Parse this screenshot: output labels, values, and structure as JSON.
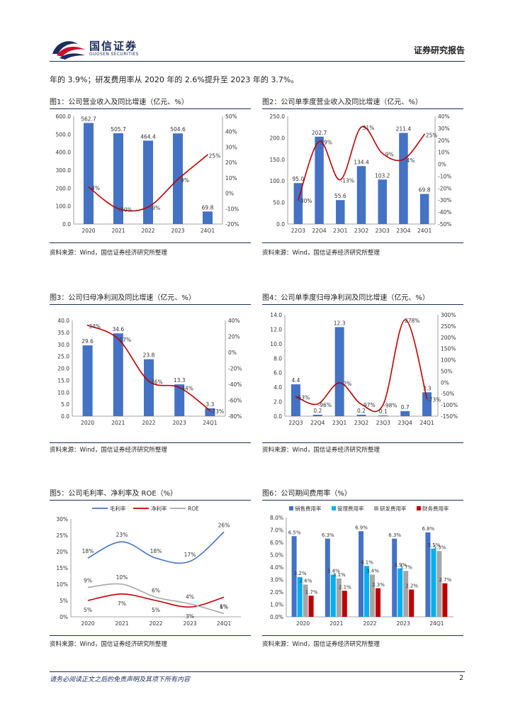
{
  "header": {
    "logo_cn": "国信证券",
    "logo_en": "GUOSEN SECURITIES",
    "report_type": "证券研究报告"
  },
  "intro_text": "年的 3.9%；研发费用率从 2020 年的 2.6%提升至 2023 年的 3.7%。",
  "source_text": "资料来源：Wind，国信证券经济研究所整理",
  "footer": {
    "disclaimer": "请务必阅读正文之后的免责声明及其项下所有内容",
    "page_number": "2"
  },
  "colors": {
    "bar": "#4472c4",
    "line": "#c00000",
    "rule": "#1b2d5c"
  },
  "chart_data": [
    {
      "type": "bar",
      "title": "图1：公司营业收入及同比增速（亿元、%）",
      "categories": [
        "2020",
        "2021",
        "2022",
        "2023",
        "24Q1"
      ],
      "series": [
        {
          "values": [
            562.7,
            505.7,
            464.4,
            504.6,
            69.8
          ],
          "labels": [
            "562.7",
            "505.7",
            "464.4",
            "504.6",
            "69.8"
          ]
        },
        {
          "type": "line",
          "axis": "right",
          "values": [
            4,
            -10,
            -9,
            9,
            25
          ],
          "labels": [
            "4%",
            "-10%",
            "-9%",
            "9%",
            "25%"
          ]
        }
      ],
      "y_left": {
        "min": 0,
        "max": 600,
        "ticks": [
          "0.0",
          "100.0",
          "200.0",
          "300.0",
          "400.0",
          "500.0",
          "600.0"
        ]
      },
      "y_right": {
        "min": -20,
        "max": 50,
        "ticks": [
          "-20%",
          "-10%",
          "0%",
          "10%",
          "20%",
          "30%",
          "40%",
          "50%"
        ]
      }
    },
    {
      "type": "bar",
      "title": "图2：公司单季度营业收入及同比增速（亿元、%）",
      "categories": [
        "22Q3",
        "22Q4",
        "23Q1",
        "23Q2",
        "23Q3",
        "23Q4",
        "24Q1"
      ],
      "series": [
        {
          "values": [
            95.0,
            202.7,
            55.6,
            134.4,
            103.2,
            211.4,
            69.8
          ],
          "labels": [
            "95.0",
            "202.7",
            "55.6",
            "134.4",
            "103.2",
            "211.4",
            "69.8"
          ]
        },
        {
          "type": "line",
          "axis": "right",
          "values": [
            -30,
            19,
            -13,
            31,
            9,
            4,
            25
          ],
          "labels": [
            "-30%",
            "19%",
            "-13%",
            "31%",
            "9%",
            "4%",
            "25%"
          ]
        }
      ],
      "y_left": {
        "min": 0,
        "max": 250,
        "ticks": [
          "0.0",
          "50.0",
          "100.0",
          "150.0",
          "200.0",
          "250.0"
        ]
      },
      "y_right": {
        "min": -50,
        "max": 40,
        "ticks": [
          "-50%",
          "-40%",
          "-30%",
          "-20%",
          "-10%",
          "0%",
          "10%",
          "20%",
          "30%",
          "40%"
        ]
      }
    },
    {
      "type": "bar",
      "title": "图3：公司归母净利润及同比增速（亿元、%）",
      "categories": [
        "2020",
        "2021",
        "2022",
        "2023",
        "24Q1"
      ],
      "series": [
        {
          "values": [
            29.6,
            34.6,
            23.8,
            13.3,
            3.3
          ],
          "labels": [
            "29.6",
            "34.6",
            "23.8",
            "13.3",
            "3.3"
          ]
        },
        {
          "type": "line",
          "axis": "right",
          "values": [
            34,
            17,
            -36,
            -44,
            -73
          ],
          "labels": [
            "34%",
            "17%",
            "-36%",
            "-44%",
            "-73%"
          ]
        }
      ],
      "y_left": {
        "min": 0,
        "max": 40,
        "ticks": [
          "0.0",
          "5.0",
          "10.0",
          "15.0",
          "20.0",
          "25.0",
          "30.0",
          "35.0",
          "40.0"
        ]
      },
      "y_right": {
        "min": -80,
        "max": 40,
        "ticks": [
          "-80%",
          "-60%",
          "-40%",
          "-20%",
          "0%",
          "20%",
          "40%"
        ]
      }
    },
    {
      "type": "bar",
      "title": "图4：公司单季度归母净利润及同比增速（亿元、%）",
      "categories": [
        "22Q3",
        "22Q4",
        "23Q1",
        "23Q2",
        "23Q3",
        "23Q4",
        "24Q1"
      ],
      "series": [
        {
          "values": [
            4.4,
            0.2,
            12.3,
            0.2,
            0.1,
            0.7,
            3.3
          ],
          "labels": [
            "4.4",
            "0.2",
            "12.3",
            "0.2",
            "0.1",
            "0.7",
            "3.3"
          ]
        },
        {
          "type": "line",
          "axis": "right",
          "values": [
            -63,
            -96,
            -2,
            -97,
            -98,
            278,
            -73
          ],
          "labels": [
            "-63%",
            "-96%",
            "-2%",
            "-97%",
            "-98%",
            "278%",
            "-73%"
          ]
        }
      ],
      "y_left": {
        "min": 0,
        "max": 14,
        "ticks": [
          "0.0",
          "2.0",
          "4.0",
          "6.0",
          "8.0",
          "10.0",
          "12.0",
          "14.0"
        ]
      },
      "y_right": {
        "min": -150,
        "max": 300,
        "ticks": [
          "-150%",
          "-100%",
          "-50%",
          "0%",
          "50%",
          "100%",
          "150%",
          "200%",
          "250%",
          "300%"
        ]
      }
    },
    {
      "type": "line",
      "title": "图5：公司毛利率、净利率及 ROE（%）",
      "categories": [
        "2020",
        "2021",
        "2022",
        "2023",
        "24Q1"
      ],
      "series": [
        {
          "name": "毛利率",
          "color": "#4472c4",
          "values": [
            18,
            23,
            18,
            17,
            26
          ],
          "labels": [
            "18%",
            "23%",
            "18%",
            "17%",
            "26%"
          ]
        },
        {
          "name": "净利率",
          "color": "#c00000",
          "values": [
            5,
            7,
            5,
            3,
            6
          ],
          "labels": [
            "5%",
            "7%",
            "5%",
            "3%",
            "6%"
          ]
        },
        {
          "name": "ROE",
          "color": "#a6a6a6",
          "values": [
            9,
            10,
            6,
            4,
            1
          ],
          "labels": [
            "9%",
            "10%",
            "6%",
            "4%",
            "1%"
          ]
        }
      ],
      "y_left": {
        "min": 0,
        "max": 30,
        "ticks": [
          "0%",
          "5%",
          "10%",
          "15%",
          "20%",
          "25%",
          "30%"
        ]
      },
      "legend": "top"
    },
    {
      "type": "bar",
      "title": "图6：公司期间费用率（%）",
      "categories": [
        "2020",
        "2021",
        "2022",
        "2023",
        "24Q1"
      ],
      "series": [
        {
          "name": "销售费用率",
          "color": "#4472c4",
          "values": [
            6.5,
            6.3,
            6.9,
            6.3,
            6.8
          ],
          "labels": [
            "6.5%",
            "6.3%",
            "6.9%",
            "6.3%",
            "6.8%"
          ]
        },
        {
          "name": "管理费用率",
          "color": "#00b0f0",
          "values": [
            3.2,
            3.4,
            4.1,
            3.9,
            5.5
          ],
          "labels": [
            "3.2%",
            "3.4%",
            "4.1%",
            "3.9%",
            "5.5%"
          ]
        },
        {
          "name": "研发费用率",
          "color": "#a6a6a6",
          "values": [
            2.6,
            3.1,
            3.4,
            3.7,
            5.3
          ],
          "labels": [
            "2.6%",
            "3.1%",
            "3.4%",
            "3.7%",
            "5.3%"
          ]
        },
        {
          "name": "财务费用率",
          "color": "#c00000",
          "values": [
            1.7,
            2.1,
            2.3,
            2.2,
            2.7
          ],
          "labels": [
            "1.7%",
            "2.1%",
            "2.3%",
            "2.2%",
            "2.7%"
          ]
        }
      ],
      "y_left": {
        "min": 0,
        "max": 8,
        "ticks": [
          "0.0%",
          "1.0%",
          "2.0%",
          "3.0%",
          "4.0%",
          "5.0%",
          "6.0%",
          "7.0%",
          "8.0%"
        ]
      },
      "legend": "top"
    }
  ]
}
